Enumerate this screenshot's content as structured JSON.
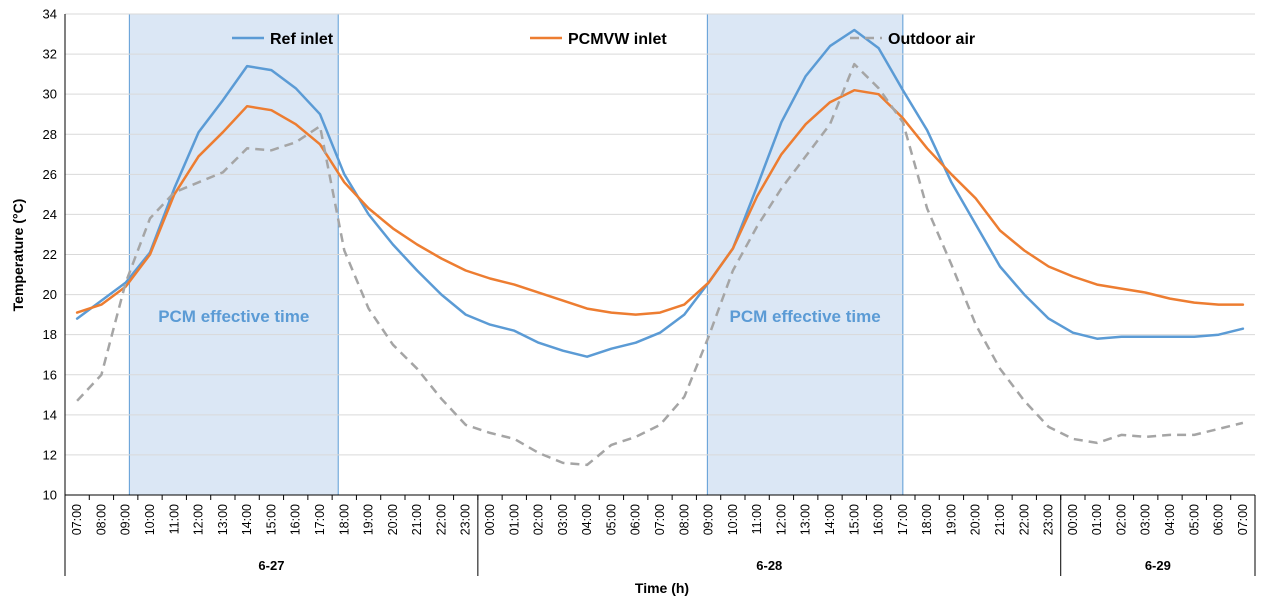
{
  "chart_data": {
    "type": "line",
    "xlabel": "Time (h)",
    "ylabel": "Temperature (°C)",
    "ylim": [
      10,
      34
    ],
    "yticks": [
      10,
      12,
      14,
      16,
      18,
      20,
      22,
      24,
      26,
      28,
      30,
      32,
      34
    ],
    "grid": "horizontal",
    "legend_position": "top",
    "categories": [
      "07:00",
      "08:00",
      "09:00",
      "10:00",
      "11:00",
      "12:00",
      "13:00",
      "14:00",
      "15:00",
      "16:00",
      "17:00",
      "18:00",
      "19:00",
      "20:00",
      "21:00",
      "22:00",
      "23:00",
      "00:00",
      "01:00",
      "02:00",
      "03:00",
      "04:00",
      "05:00",
      "06:00",
      "07:00",
      "08:00",
      "09:00",
      "10:00",
      "11:00",
      "12:00",
      "13:00",
      "14:00",
      "15:00",
      "16:00",
      "17:00",
      "18:00",
      "19:00",
      "20:00",
      "21:00",
      "22:00",
      "23:00",
      "00:00",
      "01:00",
      "02:00",
      "03:00",
      "04:00",
      "05:00",
      "06:00",
      "07:00"
    ],
    "date_groups": [
      {
        "label": "6-27",
        "start": 0,
        "end": 16
      },
      {
        "label": "6-28",
        "start": 17,
        "end": 40
      },
      {
        "label": "6-29",
        "start": 41,
        "end": 48
      }
    ],
    "shaded_regions": [
      {
        "label": "PCM effective time",
        "start": 2.65,
        "end": 11.25
      },
      {
        "label": "PCM effective time",
        "start": 26.45,
        "end": 34.5
      }
    ],
    "series": [
      {
        "name": "Ref inlet",
        "color": "#5b9bd5",
        "style": "solid",
        "values": [
          18.8,
          19.7,
          20.6,
          22.1,
          25.3,
          28.1,
          29.7,
          31.4,
          31.2,
          30.3,
          29.0,
          26.0,
          24.0,
          22.5,
          21.2,
          20.0,
          19.0,
          18.5,
          18.2,
          17.6,
          17.2,
          16.9,
          17.3,
          17.6,
          18.1,
          19.0,
          20.6,
          22.3,
          25.4,
          28.6,
          30.9,
          32.4,
          33.2,
          32.3,
          30.2,
          28.2,
          25.6,
          23.5,
          21.4,
          20.0,
          18.8,
          18.1,
          17.8,
          17.9,
          17.9,
          17.9,
          17.9,
          18.0,
          18.3
        ]
      },
      {
        "name": "PCMVW inlet",
        "color": "#ed7d31",
        "style": "solid",
        "values": [
          19.1,
          19.5,
          20.4,
          22.0,
          25.0,
          26.9,
          28.1,
          29.4,
          29.2,
          28.5,
          27.5,
          25.6,
          24.3,
          23.3,
          22.5,
          21.8,
          21.2,
          20.8,
          20.5,
          20.1,
          19.7,
          19.3,
          19.1,
          19.0,
          19.1,
          19.5,
          20.6,
          22.3,
          24.9,
          27.0,
          28.5,
          29.6,
          30.2,
          30.0,
          28.8,
          27.3,
          26.0,
          24.8,
          23.2,
          22.2,
          21.4,
          20.9,
          20.5,
          20.3,
          20.1,
          19.8,
          19.6,
          19.5,
          19.5
        ]
      },
      {
        "name": "Outdoor air",
        "color": "#a5a5a5",
        "style": "dashed",
        "values": [
          14.7,
          16.0,
          20.6,
          23.8,
          25.1,
          25.6,
          26.1,
          27.3,
          27.2,
          27.6,
          28.4,
          22.2,
          19.3,
          17.5,
          16.3,
          14.8,
          13.5,
          13.1,
          12.8,
          12.1,
          11.6,
          11.5,
          12.5,
          12.9,
          13.5,
          14.9,
          17.9,
          21.2,
          23.4,
          25.3,
          26.9,
          28.5,
          31.5,
          30.3,
          28.6,
          24.3,
          21.5,
          18.5,
          16.3,
          14.7,
          13.4,
          12.8,
          12.6,
          13.0,
          12.9,
          13.0,
          13.0,
          13.3,
          13.6
        ]
      }
    ]
  }
}
